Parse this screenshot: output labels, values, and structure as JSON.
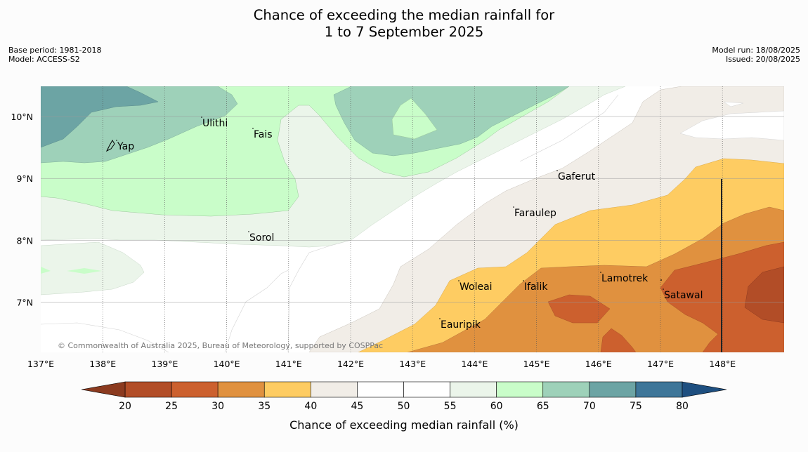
{
  "title": {
    "line1": "Chance of exceeding the median rainfall for",
    "line2": "1 to 7 September 2025"
  },
  "meta_left": {
    "base_period": "Base period: 1981-2018",
    "model": "Model: ACCESS-S2"
  },
  "meta_right": {
    "model_run": "Model run: 18/08/2025",
    "issued": "Issued: 20/08/2025"
  },
  "map": {
    "lon_range": [
      137,
      149
    ],
    "lat_range": [
      6.2,
      10.5
    ],
    "lon_ticks": [
      "137°E",
      "138°E",
      "139°E",
      "140°E",
      "141°E",
      "142°E",
      "143°E",
      "144°E",
      "145°E",
      "146°E",
      "147°E",
      "148°E"
    ],
    "lat_ticks": [
      "10°N",
      "9°N",
      "8°N",
      "7°N"
    ],
    "places": [
      "Yap",
      "Ulithi",
      "Fais",
      "Sorol",
      "Gaferut",
      "Faraulep",
      "Woleai",
      "Ifalik",
      "Lamotrek",
      "Satawal",
      "Eauripik"
    ],
    "copyright": "© Commonwealth of Australia 2025, Bureau of Meteorology, supported by COSPPac"
  },
  "colorbar": {
    "ticks": [
      "20",
      "25",
      "30",
      "35",
      "40",
      "45",
      "50",
      "55",
      "60",
      "65",
      "70",
      "75",
      "80"
    ],
    "colors": [
      "#b24d27",
      "#cc602e",
      "#e0913f",
      "#fecc62",
      "#f1ede7",
      "#ffffff",
      "#ffffff",
      "#ebf5ea",
      "#c9fdc9",
      "#9ed1b9",
      "#6ca4a4",
      "#3e7699"
    ],
    "under_color": "#8b3a1f",
    "over_color": "#1e4f80",
    "label": "Chance of exceeding median rainfall (%)"
  }
}
